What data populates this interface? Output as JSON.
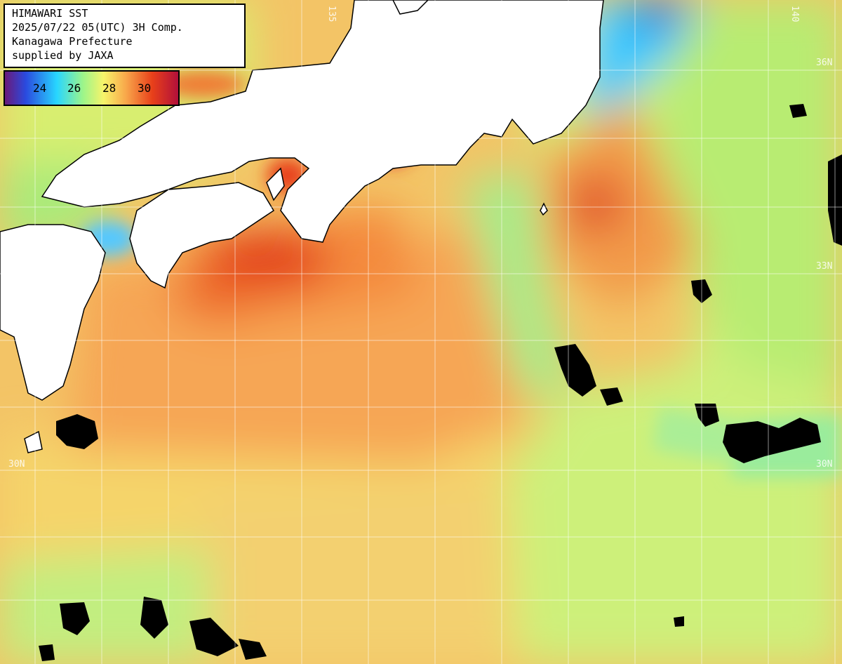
{
  "title": {
    "line1": "HIMAWARI SST",
    "line2": "2025/07/22 05(UTC) 3H Comp.",
    "line3": "Kanagawa Prefecture",
    "line4": "supplied by JAXA"
  },
  "legend": {
    "labels": [
      "24",
      "26",
      "28",
      "30"
    ],
    "colors": [
      "#6a1a7a",
      "#2a4adf",
      "#28d6ff",
      "#9cf58a",
      "#f7f46a",
      "#f8a64a",
      "#e8401a",
      "#b2103a"
    ]
  },
  "grid_labels": {
    "lat_36": "36N",
    "lat_33": "33N",
    "lat_30_left": "30N",
    "lat_30_right": "30N",
    "lon_135": "135",
    "lon_140": "140"
  },
  "colors": {
    "land": "#ffffff",
    "cloud": "#000000",
    "warm_sea": "#f6a95a",
    "hot_sea": "#e4441e",
    "cool_sea": "#b7f07c",
    "cold_sea": "#36cfff"
  }
}
